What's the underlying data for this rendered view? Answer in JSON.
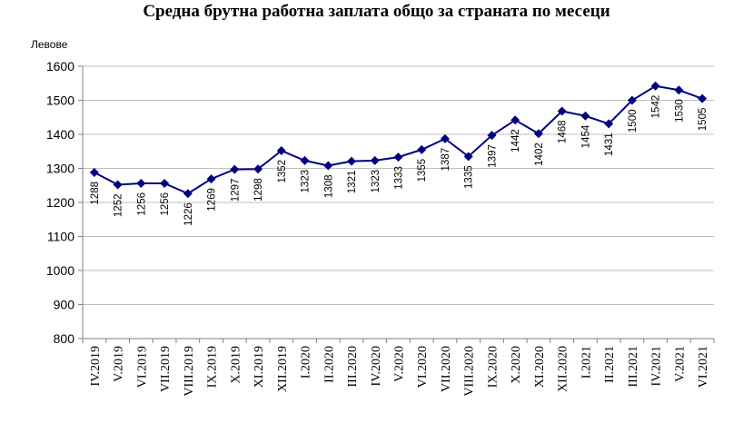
{
  "chart_data": {
    "type": "line",
    "title": "Средна брутна работна заплата общо за страната по месеци",
    "ylabel": "Левове",
    "xlabel": "",
    "ylim": [
      800,
      1600
    ],
    "yticks": [
      800,
      900,
      1000,
      1100,
      1200,
      1300,
      1400,
      1500,
      1600
    ],
    "grid": true,
    "legend": "none",
    "categories": [
      "IV.2019",
      "V.2019",
      "VI.2019",
      "VII.2019",
      "VIII.2019",
      "IX.2019",
      "X.2019",
      "XI.2019",
      "XII.2019",
      "I.2020",
      "II.2020",
      "III.2020",
      "IV.2020",
      "V.2020",
      "VI.2020",
      "VII.2020",
      "VIII.2020",
      "IX.2020",
      "X.2020",
      "XI.2020",
      "XII.2020",
      "I.2021",
      "II.2021",
      "III.2021",
      "IV.2021",
      "V.2021",
      "VI.2021"
    ],
    "series": [
      {
        "values": [
          1288,
          1252,
          1256,
          1256,
          1226,
          1269,
          1297,
          1298,
          1352,
          1323,
          1308,
          1321,
          1323,
          1333,
          1355,
          1387,
          1335,
          1397,
          1442,
          1402,
          1468,
          1454,
          1431,
          1500,
          1542,
          1530,
          1505
        ],
        "color": "#000080",
        "marker": "diamond"
      }
    ]
  }
}
